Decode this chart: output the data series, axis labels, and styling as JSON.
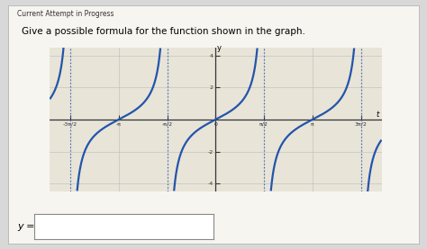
{
  "header": "Current Attempt in Progress",
  "title": "Give a possible formula for the function shown in the graph.",
  "xlabel": "t",
  "ylabel": "y",
  "ylim": [
    -4.5,
    4.5
  ],
  "xlim": [
    -5.4,
    5.4
  ],
  "yticks": [
    -4,
    -2,
    2,
    4
  ],
  "xtick_labels": [
    "-3π/2",
    "-π",
    "-π/2",
    "0",
    "π/2",
    "π",
    "3π/2"
  ],
  "xtick_values": [
    -4.71238898,
    -3.14159265,
    -1.5707963,
    0,
    1.5707963,
    3.14159265,
    4.71238898
  ],
  "asymptotes": [
    -4.71238898,
    -1.5707963,
    1.5707963,
    4.71238898
  ],
  "curve_color": "#2255aa",
  "asymptote_color": "#3366bb",
  "outer_bg": "#d8d8d8",
  "card_bg": "#f7f5f0",
  "graph_bg": "#e8e4d8",
  "label_input": "y =",
  "grid_color": "#bbbbbb",
  "axis_color": "#333333"
}
